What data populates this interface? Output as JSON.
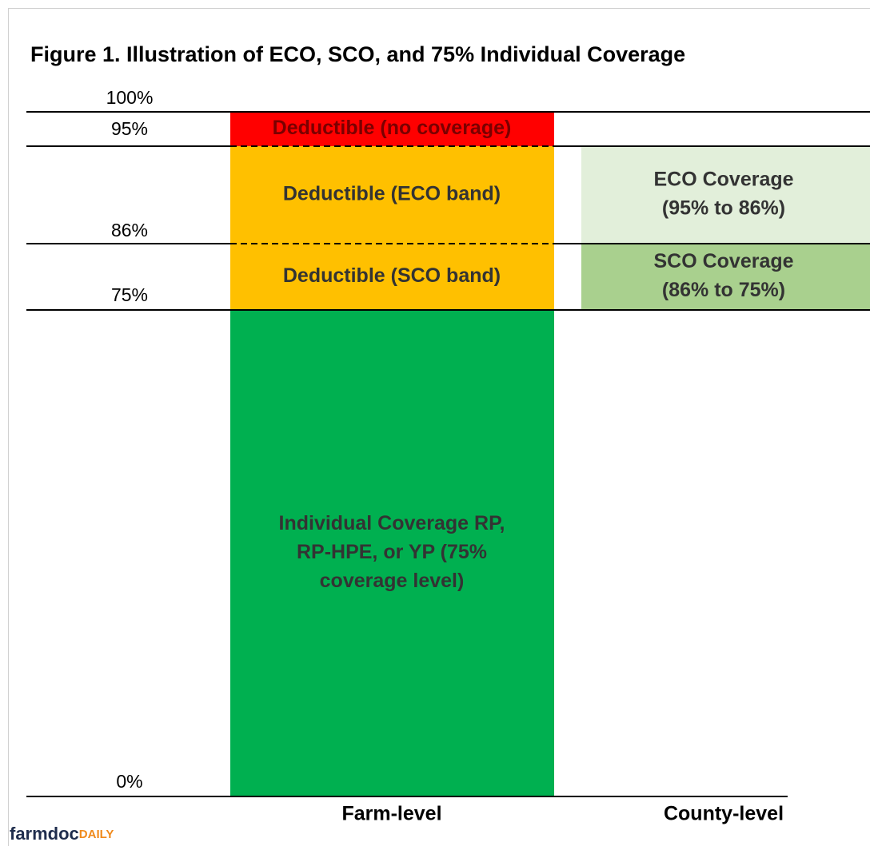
{
  "title": "Figure 1. Illustration of ECO, SCO, and 75% Individual Coverage",
  "levels": [
    "100%",
    "95%",
    "86%",
    "75%",
    "0%"
  ],
  "farm_boxes": [
    {
      "lines": [
        "Deductible (no coverage)"
      ]
    },
    {
      "lines": [
        "Deductible (ECO band)"
      ]
    },
    {
      "lines": [
        "Deductible (SCO band)"
      ]
    },
    {
      "lines": [
        "Individual Coverage RP,",
        "RP-HPE, or YP (75%",
        "coverage level)"
      ]
    }
  ],
  "county_boxes": [
    {
      "lines": [
        "ECO Coverage",
        "(95% to 86%)"
      ]
    },
    {
      "lines": [
        "SCO Coverage",
        "(86% to 75%)"
      ]
    }
  ],
  "columns": [
    "Farm-level",
    "County-level"
  ],
  "logo": {
    "main": "farmdoc",
    "accent": "DAILY"
  }
}
